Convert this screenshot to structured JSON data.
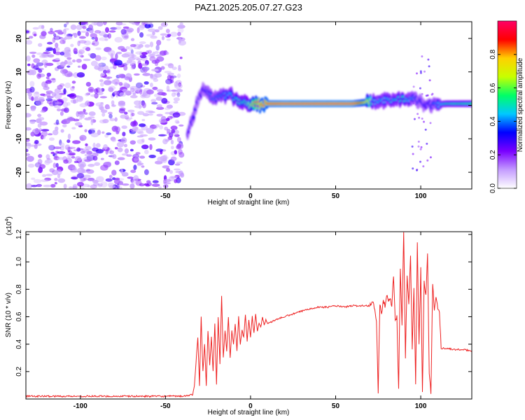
{
  "figure": {
    "title": "PAZ1.2025.205.07.27.G23"
  },
  "chart_data": [
    {
      "type": "heatmap",
      "xlabel": "Height of straight line (km)",
      "ylabel": "Frequency (Hz)",
      "xlim": [
        -132,
        130
      ],
      "ylim": [
        -25,
        25
      ],
      "xticks": [
        -100,
        -50,
        0,
        50,
        100
      ],
      "yticks": [
        -20,
        -10,
        0,
        10,
        20
      ],
      "colorbar": {
        "label": "Normalized spectral amplitude",
        "range": [
          0,
          1
        ],
        "ticks": [
          "0.0",
          "0.2",
          "0.4",
          "0.6",
          "0.8"
        ],
        "tick_values": [
          0.0,
          0.2,
          0.4,
          0.6,
          0.8
        ],
        "colors": [
          "#ffffff",
          "#c49cff",
          "#7a00ff",
          "#0000ff",
          "#00c8ff",
          "#00ff66",
          "#c8ff00",
          "#ffd000",
          "#ff0000",
          "#ff0066"
        ]
      },
      "noise_region_x": [
        -132,
        -40
      ],
      "signal_ridge": {
        "x": [
          -37,
          -34,
          -30,
          -27,
          -22,
          -16,
          -12,
          -6,
          -2,
          0,
          5,
          20,
          40,
          60,
          70,
          72,
          80,
          90,
          96,
          100,
          105,
          115,
          130
        ],
        "y": [
          -8,
          -4,
          3,
          5,
          2,
          3,
          3,
          1,
          0.5,
          0,
          0.5,
          0.5,
          0.5,
          0.5,
          1,
          1,
          1.5,
          2,
          2,
          1,
          0,
          0.5,
          0.5
        ],
        "amplitude": [
          0.3,
          0.35,
          0.3,
          0.35,
          0.4,
          0.4,
          0.45,
          0.5,
          0.55,
          0.7,
          0.95,
          1.0,
          1.0,
          1.0,
          0.7,
          0.45,
          0.45,
          0.5,
          0.4,
          0.35,
          0.35,
          0.5,
          0.55
        ]
      }
    },
    {
      "type": "line",
      "xlabel": "Height of straight line (km)",
      "ylabel": "SNR (10 * v/v)",
      "multiplier_label": "(x10",
      "multiplier_exp": "4",
      "xlim": [
        -132,
        130
      ],
      "ylim": [
        0,
        1.22
      ],
      "xticks": [
        -100,
        -50,
        0,
        50,
        100
      ],
      "yticks": [
        "0.2",
        "0.4",
        "0.6",
        "0.8",
        "1.0",
        "1.2"
      ],
      "ytick_values": [
        0.2,
        0.4,
        0.6,
        0.8,
        1.0,
        1.2
      ],
      "line_color": "#ee2222",
      "series": [
        {
          "x": [
            -132,
            -100,
            -60,
            -40,
            -34,
            -33,
            -31,
            -30,
            -29,
            -28,
            -27,
            -26,
            -25,
            -24,
            -23,
            -22,
            -21,
            -20,
            -19,
            -18,
            -17,
            -16,
            -15,
            -14,
            -13,
            -12,
            -11,
            -10,
            -9,
            -8,
            -7,
            -6,
            -5,
            -4,
            -3,
            -2,
            -1,
            0,
            1,
            2,
            3,
            4,
            5,
            6,
            7,
            8,
            9,
            10,
            12,
            15,
            20,
            25,
            30,
            35,
            40,
            45,
            50,
            55,
            60,
            65,
            70,
            72,
            73,
            74,
            75,
            76,
            77,
            78,
            79,
            80,
            81,
            82,
            83,
            84,
            85,
            86,
            87,
            88,
            89,
            90,
            91,
            92,
            93,
            94,
            95,
            96,
            97,
            98,
            99,
            100,
            101,
            102,
            103,
            104,
            105,
            106,
            107,
            108,
            109,
            110,
            111,
            112,
            115,
            120,
            125,
            130
          ],
          "y": [
            0.02,
            0.02,
            0.02,
            0.02,
            0.03,
            0.1,
            0.45,
            0.1,
            0.6,
            0.2,
            0.4,
            0.1,
            0.5,
            0.25,
            0.45,
            0.2,
            0.55,
            0.1,
            0.6,
            0.25,
            0.75,
            0.3,
            0.5,
            0.35,
            0.6,
            0.3,
            0.5,
            0.4,
            0.55,
            0.35,
            0.6,
            0.4,
            0.5,
            0.45,
            0.62,
            0.42,
            0.58,
            0.45,
            0.6,
            0.48,
            0.62,
            0.5,
            0.55,
            0.52,
            0.6,
            0.54,
            0.58,
            0.55,
            0.56,
            0.58,
            0.6,
            0.62,
            0.64,
            0.66,
            0.67,
            0.67,
            0.68,
            0.67,
            0.68,
            0.68,
            0.68,
            0.72,
            0.65,
            0.58,
            0.05,
            0.7,
            0.62,
            0.72,
            0.68,
            0.75,
            0.72,
            0.74,
            0.68,
            0.9,
            0.58,
            0.6,
            0.07,
            0.95,
            0.55,
            1.22,
            0.3,
            0.9,
            0.7,
            1.05,
            0.35,
            0.8,
            0.1,
            1.15,
            0.4,
            0.95,
            0.05,
            0.85,
            0.75,
            1.05,
            0.2,
            0.05,
            0.85,
            0.65,
            0.75,
            0.65,
            0.64,
            0.37,
            0.37,
            0.36,
            0.36,
            0.35
          ]
        }
      ]
    }
  ]
}
